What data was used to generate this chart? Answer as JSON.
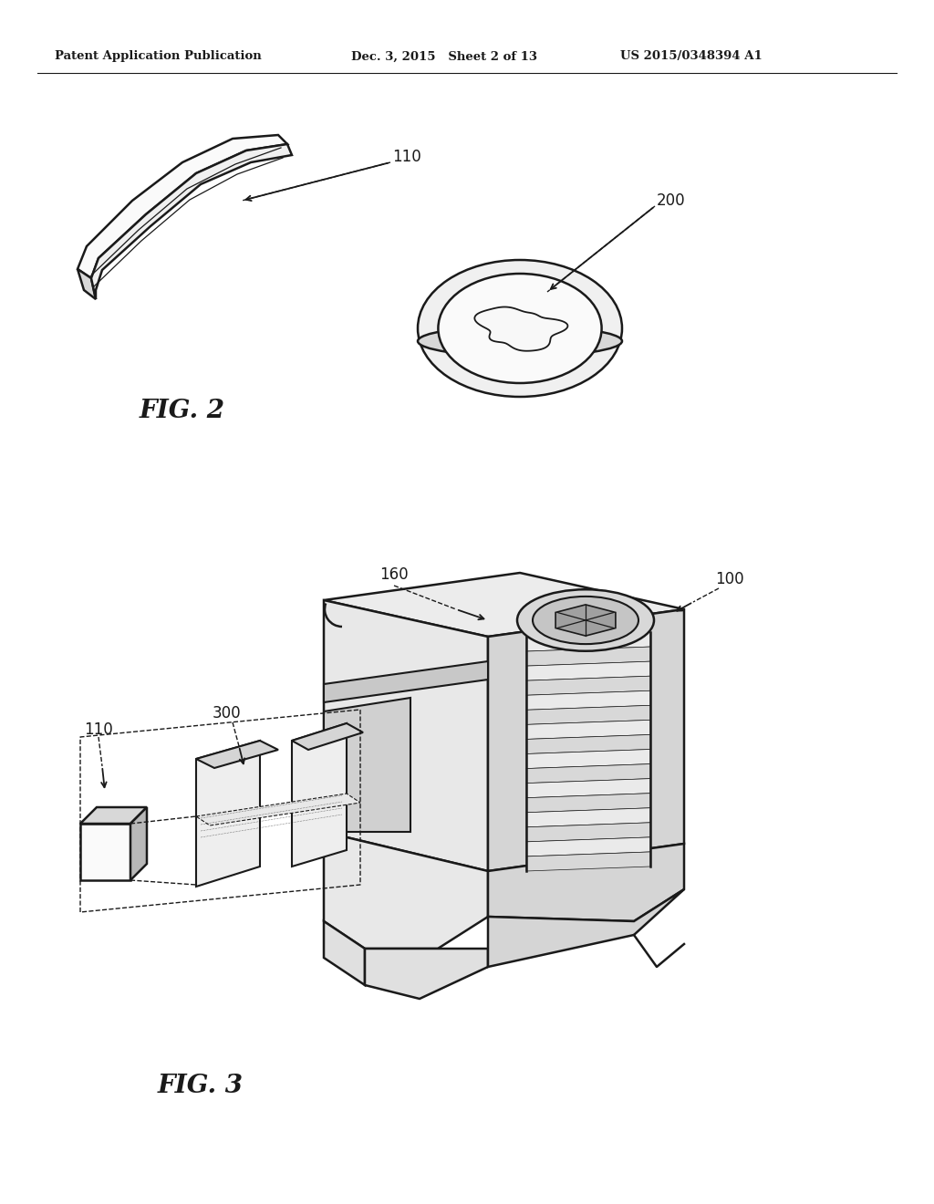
{
  "header_left": "Patent Application Publication",
  "header_mid": "Dec. 3, 2015   Sheet 2 of 13",
  "header_right": "US 2015/0348394 A1",
  "fig2_label": "FIG. 2",
  "fig3_label": "FIG. 3",
  "label_110_fig2": "110",
  "label_200": "200",
  "label_110_fig3": "110",
  "label_300": "300",
  "label_160": "160",
  "label_100": "100",
  "bg_color": "#ffffff",
  "line_color": "#1a1a1a",
  "fill_light": "#f0f0f0",
  "fill_mid": "#d8d8d8",
  "fill_dark": "#b8b8b8",
  "fill_white": "#fafafa"
}
